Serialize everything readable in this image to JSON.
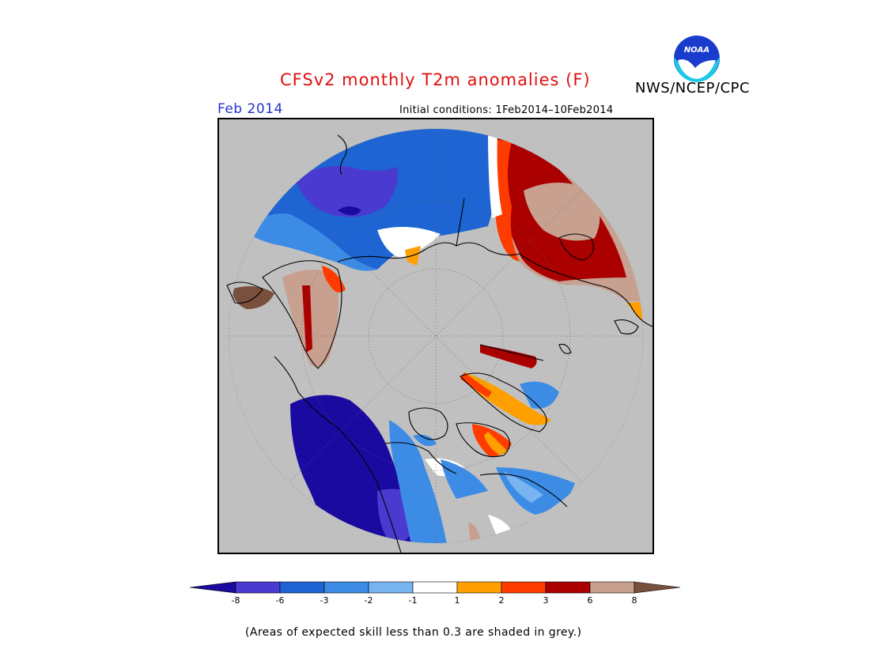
{
  "header": {
    "title": "CFSv2 monthly T2m anomalies (F)",
    "organization": "NWS/NCEP/CPC",
    "logo_text": "NOAA",
    "forecast_month": "Feb 2014",
    "initial_conditions": "Initial conditions: 1Feb2014–10Feb2014"
  },
  "map": {
    "projection": "north polar stereographic",
    "background_color": "#c0c0c0",
    "regions_shown": "Northern Hemisphere"
  },
  "legend": {
    "colors": [
      "#1a0aa0",
      "#4a3ad0",
      "#1e64d2",
      "#3c8ce6",
      "#78b4f0",
      "#ffffff",
      "#ffa000",
      "#ff3c00",
      "#aa0000",
      "#c8a090",
      "#78503c"
    ],
    "labels": [
      "-8",
      "-6",
      "-3",
      "-2",
      "-1",
      "1",
      "2",
      "3",
      "6",
      "8"
    ]
  },
  "footnote": "(Areas of expected skill less than 0.3 are shaded in grey.)"
}
